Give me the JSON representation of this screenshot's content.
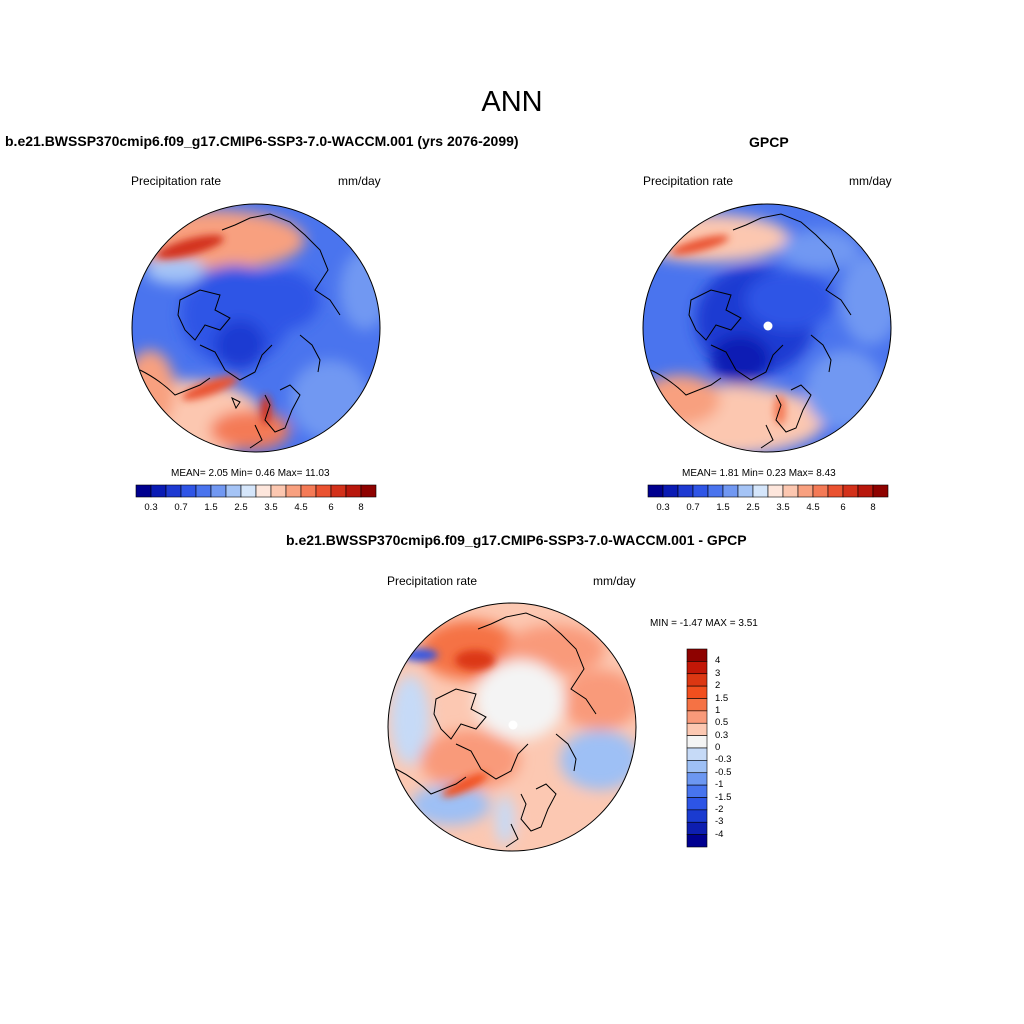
{
  "title": "ANN",
  "panels": [
    {
      "title": "b.e21.BWSSP370cmip6.f09_g17.CMIP6-SSP3-7.0-WACCM.001 (yrs 2076-2099)",
      "variable": "Precipitation rate",
      "units": "mm/day",
      "stats": "MEAN=   2.05  Min=   0.46  Max=  11.03"
    },
    {
      "title": "GPCP",
      "variable": "Precipitation rate",
      "units": "mm/day",
      "stats": "MEAN=   1.81  Min=   0.23  Max=   8.43"
    },
    {
      "title": "b.e21.BWSSP370cmip6.f09_g17.CMIP6-SSP3-7.0-WACCM.001 - GPCP",
      "variable": "Precipitation rate",
      "units": "mm/day",
      "stats": "MIN =  -1.47 MAX =   3.51"
    }
  ],
  "colorbar_abs": {
    "colors": [
      "#00008f",
      "#0a1bb4",
      "#1e3ad2",
      "#2f55e6",
      "#4a74ee",
      "#7198f2",
      "#a5c4f6",
      "#d5e6fb",
      "#fde6dc",
      "#fcc7b0",
      "#f8a07f",
      "#f47a56",
      "#ea5230",
      "#d3311a",
      "#b8170c",
      "#8e0200"
    ],
    "tick_labels": [
      "0.3",
      "0.7",
      "1.5",
      "2.5",
      "3.5",
      "4.5",
      "6",
      "8"
    ]
  },
  "colorbar_diff": {
    "colors": [
      "#8e0200",
      "#c21707",
      "#dc3712",
      "#f24f1e",
      "#f57244",
      "#f99a7a",
      "#fcc8b2",
      "#f4f4f4",
      "#c6daf7",
      "#9ec0f5",
      "#6c97f1",
      "#4774ee",
      "#2d55e6",
      "#1a3bd0",
      "#0d1eb0",
      "#000090"
    ],
    "tick_labels": [
      "4",
      "3",
      "2",
      "1.5",
      "1",
      "0.5",
      "0.3",
      "0",
      "-0.3",
      "-0.5",
      "-1",
      "-1.5",
      "-2",
      "-3",
      "-4"
    ]
  }
}
